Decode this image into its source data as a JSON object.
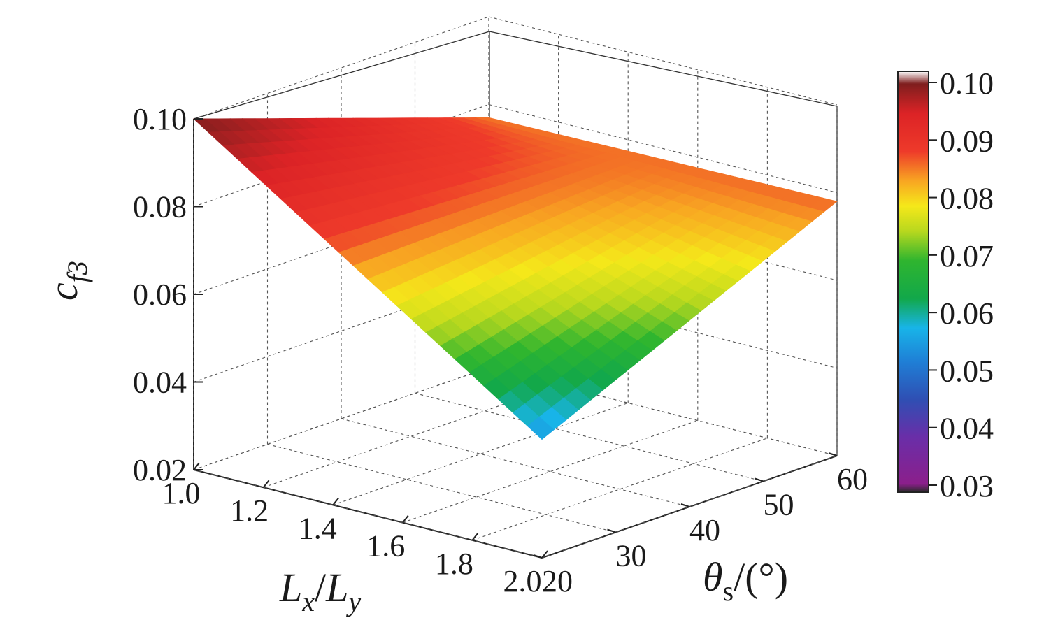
{
  "chart_data": {
    "type": "surface3d",
    "title": "",
    "axes": {
      "x": {
        "label_main": "L",
        "label_sub1": "x",
        "label_slash": "/",
        "label_main2": "L",
        "label_sub2": "y",
        "range": [
          1.0,
          2.0
        ],
        "ticks": [
          "1.0",
          "1.2",
          "1.4",
          "1.6",
          "1.8",
          "2.0"
        ]
      },
      "y": {
        "label_main": "θ",
        "label_sub": "s",
        "label_unit": "/(°)",
        "range": [
          20,
          60
        ],
        "ticks": [
          "20",
          "30",
          "40",
          "50",
          "60"
        ]
      },
      "z": {
        "label_main": "c",
        "label_sub": "f3",
        "range": [
          0.02,
          0.1
        ],
        "ticks": [
          "0.02",
          "0.04",
          "0.06",
          "0.08",
          "0.10"
        ]
      }
    },
    "colorbar": {
      "range": [
        0.03,
        0.1
      ],
      "ticks": [
        "0.03",
        "0.04",
        "0.05",
        "0.06",
        "0.07",
        "0.08",
        "0.09",
        "0.10"
      ]
    },
    "grid": true,
    "surface_corners": [
      {
        "x": 1.0,
        "y": 20,
        "z": 0.1
      },
      {
        "x": 2.0,
        "y": 20,
        "z": 0.047
      },
      {
        "x": 1.0,
        "y": 60,
        "z": 0.077
      },
      {
        "x": 2.0,
        "y": 60,
        "z": 0.078
      }
    ]
  }
}
